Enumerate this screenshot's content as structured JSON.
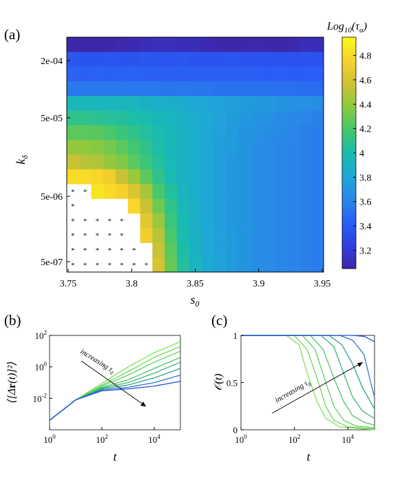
{
  "chart_data": [
    {
      "panel": "(a)",
      "type": "heatmap",
      "xlabel": "s_0",
      "ylabel": "k_δ",
      "colorbar_label": "Log10(τα)",
      "colorbar_ticks": [
        "3.2",
        "3.4",
        "3.6",
        "3.8",
        "4",
        "4.2",
        "4.4",
        "4.6",
        "4.8"
      ],
      "colorbar_range": [
        3.05,
        4.95
      ],
      "xticks": [
        "3.75",
        "3.8",
        "3.85",
        "3.9",
        "3.95"
      ],
      "yticks": [
        "2e-04",
        "5e-05",
        "5e-06",
        "5e-07"
      ],
      "x_values": [
        3.75,
        3.76,
        3.77,
        3.78,
        3.79,
        3.8,
        3.81,
        3.82,
        3.83,
        3.84,
        3.85,
        3.86,
        3.87,
        3.88,
        3.89,
        3.9,
        3.91,
        3.92,
        3.93,
        3.94,
        3.95
      ],
      "y_rows_top_to_bottom": [
        "4e-04",
        "2e-04",
        "1.3e-04",
        "8e-05",
        "5e-05",
        "3e-05",
        "2e-05",
        "1.3e-05",
        "8e-06",
        "5e-06",
        "3e-06",
        "2e-06",
        "1.3e-06",
        "8e-07",
        "5e-07",
        "3e-07"
      ],
      "z_log10_tau": [
        [
          3.05,
          3.05,
          3.05,
          3.05,
          3.07,
          3.08,
          3.1,
          3.12,
          3.12,
          3.1,
          3.1,
          3.08,
          3.06,
          3.05,
          3.06,
          3.07,
          3.06,
          3.05,
          3.07,
          3.1,
          3.1
        ],
        [
          3.38,
          3.36,
          3.36,
          3.37,
          3.36,
          3.36,
          3.38,
          3.37,
          3.37,
          3.38,
          3.36,
          3.35,
          3.36,
          3.37,
          3.36,
          3.35,
          3.36,
          3.35,
          3.35,
          3.36,
          3.35
        ],
        [
          3.45,
          3.44,
          3.45,
          3.44,
          3.45,
          3.45,
          3.44,
          3.44,
          3.44,
          3.43,
          3.44,
          3.44,
          3.43,
          3.43,
          3.44,
          3.43,
          3.42,
          3.43,
          3.42,
          3.42,
          3.43
        ],
        [
          3.55,
          3.55,
          3.55,
          3.55,
          3.54,
          3.55,
          3.54,
          3.54,
          3.53,
          3.54,
          3.53,
          3.53,
          3.52,
          3.52,
          3.52,
          3.52,
          3.51,
          3.51,
          3.51,
          3.5,
          3.5
        ],
        [
          3.95,
          3.95,
          3.94,
          3.94,
          3.93,
          3.93,
          3.9,
          3.88,
          3.86,
          3.85,
          3.82,
          3.8,
          3.78,
          3.76,
          3.74,
          3.72,
          3.72,
          3.7,
          3.68,
          3.68,
          3.66
        ],
        [
          4.1,
          4.1,
          4.08,
          4.06,
          4.05,
          4.02,
          4.0,
          3.95,
          3.92,
          3.88,
          3.85,
          3.82,
          3.78,
          3.75,
          3.72,
          3.7,
          3.68,
          3.66,
          3.64,
          3.62,
          3.6
        ],
        [
          4.25,
          4.25,
          4.24,
          4.2,
          4.15,
          4.1,
          4.05,
          4.0,
          3.95,
          3.9,
          3.85,
          3.8,
          3.77,
          3.74,
          3.7,
          3.68,
          3.66,
          3.64,
          3.62,
          3.6,
          3.58
        ],
        [
          4.4,
          4.38,
          4.36,
          4.32,
          4.25,
          4.18,
          4.1,
          4.02,
          3.95,
          3.9,
          3.85,
          3.8,
          3.76,
          3.73,
          3.7,
          3.67,
          3.65,
          3.63,
          3.61,
          3.6,
          3.58
        ],
        [
          4.55,
          4.5,
          4.48,
          4.4,
          4.35,
          4.25,
          4.15,
          4.05,
          3.96,
          3.9,
          3.85,
          3.8,
          3.76,
          3.72,
          3.7,
          3.67,
          3.65,
          3.63,
          3.61,
          3.6,
          3.58
        ],
        [
          4.8,
          4.8,
          4.78,
          4.72,
          4.55,
          4.42,
          4.25,
          4.1,
          3.98,
          3.9,
          3.85,
          3.8,
          3.76,
          3.72,
          3.7,
          3.67,
          3.65,
          3.63,
          3.61,
          3.6,
          3.58
        ],
        [
          null,
          null,
          4.85,
          4.8,
          4.75,
          4.62,
          4.45,
          4.2,
          4.05,
          3.92,
          3.86,
          3.8,
          3.76,
          3.72,
          3.7,
          3.67,
          3.65,
          3.63,
          3.61,
          3.6,
          3.58
        ],
        [
          null,
          null,
          null,
          null,
          null,
          4.78,
          4.55,
          4.3,
          4.1,
          3.95,
          3.87,
          3.8,
          3.76,
          3.72,
          3.7,
          3.67,
          3.65,
          3.63,
          3.61,
          3.6,
          3.58
        ],
        [
          null,
          null,
          null,
          null,
          null,
          null,
          4.65,
          4.42,
          4.15,
          3.98,
          3.88,
          3.81,
          3.76,
          3.72,
          3.7,
          3.67,
          3.65,
          3.63,
          3.61,
          3.6,
          3.58
        ],
        [
          null,
          null,
          null,
          null,
          null,
          null,
          4.72,
          4.5,
          4.2,
          4.0,
          3.9,
          3.82,
          3.77,
          3.73,
          3.7,
          3.67,
          3.65,
          3.63,
          3.61,
          3.6,
          3.58
        ],
        [
          null,
          null,
          null,
          null,
          null,
          null,
          null,
          4.55,
          4.25,
          4.02,
          3.9,
          3.82,
          3.77,
          3.73,
          3.7,
          3.67,
          3.65,
          3.63,
          3.61,
          3.6,
          3.58
        ],
        [
          null,
          null,
          null,
          null,
          null,
          null,
          null,
          4.6,
          4.28,
          4.05,
          3.92,
          3.83,
          3.78,
          3.73,
          3.7,
          3.67,
          3.65,
          3.63,
          3.61,
          3.6,
          3.58
        ]
      ],
      "unconverged_markers": [
        [
          0,
          10
        ],
        [
          1,
          10
        ],
        [
          0,
          11
        ],
        [
          0,
          12
        ],
        [
          1,
          12
        ],
        [
          2,
          12
        ],
        [
          3,
          12
        ],
        [
          4,
          12
        ],
        [
          0,
          13
        ],
        [
          1,
          13
        ],
        [
          2,
          13
        ],
        [
          3,
          13
        ],
        [
          4,
          13
        ],
        [
          0,
          14
        ],
        [
          0,
          15
        ],
        [
          1,
          14
        ],
        [
          2,
          14
        ],
        [
          3,
          14
        ],
        [
          4,
          14
        ],
        [
          5,
          14
        ],
        [
          1,
          15
        ],
        [
          2,
          15
        ],
        [
          3,
          15
        ],
        [
          4,
          15
        ],
        [
          5,
          15
        ],
        [
          6,
          15
        ]
      ]
    },
    {
      "panel": "(b)",
      "type": "line",
      "xscale": "log",
      "yscale": "log",
      "xlabel": "t",
      "ylabel": "⟨[Δr(t)]²⟩",
      "xlim": [
        1,
        100000
      ],
      "ylim": [
        0.0001,
        100
      ],
      "xticks": [
        "10^0",
        "10^2",
        "10^4"
      ],
      "yticks": [
        "10^2",
        "10^0",
        "10^-2"
      ],
      "annotation": "increasing τ_δ",
      "series": [
        {
          "color": "#7fe05a",
          "x": [
            1,
            10,
            100,
            1000,
            10000,
            100000
          ],
          "y": [
            0.0004,
            0.008,
            0.09,
            1.0,
            8,
            40
          ]
        },
        {
          "color": "#6fd85a",
          "x": [
            1,
            10,
            100,
            1000,
            10000,
            100000
          ],
          "y": [
            0.0004,
            0.008,
            0.07,
            0.5,
            4,
            20
          ]
        },
        {
          "color": "#5fd060",
          "x": [
            1,
            10,
            100,
            1000,
            10000,
            100000
          ],
          "y": [
            0.0004,
            0.008,
            0.06,
            0.3,
            2,
            10
          ]
        },
        {
          "color": "#4fc468",
          "x": [
            1,
            10,
            100,
            1000,
            10000,
            100000
          ],
          "y": [
            0.0004,
            0.008,
            0.05,
            0.15,
            0.8,
            4
          ]
        },
        {
          "color": "#3cb474",
          "x": [
            1,
            10,
            100,
            1000,
            10000,
            100000
          ],
          "y": [
            0.0004,
            0.008,
            0.045,
            0.1,
            0.4,
            2
          ]
        },
        {
          "color": "#2ea08a",
          "x": [
            1,
            10,
            100,
            1000,
            10000,
            100000
          ],
          "y": [
            0.0004,
            0.008,
            0.04,
            0.07,
            0.2,
            0.8
          ]
        },
        {
          "color": "#2d78c8",
          "x": [
            1,
            10,
            100,
            1000,
            10000,
            100000
          ],
          "y": [
            0.0004,
            0.008,
            0.035,
            0.05,
            0.1,
            0.3
          ]
        },
        {
          "color": "#2050e0",
          "x": [
            1,
            10,
            100,
            1000,
            10000,
            100000
          ],
          "y": [
            0.0004,
            0.008,
            0.03,
            0.04,
            0.06,
            0.12
          ]
        }
      ]
    },
    {
      "panel": "(c)",
      "type": "line",
      "xscale": "log",
      "xlabel": "t",
      "ylabel": "O(t)",
      "xlim": [
        1,
        100000
      ],
      "ylim": [
        0,
        1
      ],
      "xticks": [
        "10^0",
        "10^2",
        "10^4"
      ],
      "yticks": [
        "0",
        "0.5",
        "1"
      ],
      "annotation": "increasing τ_δ",
      "series": [
        {
          "color": "#7fe05a",
          "x": [
            1,
            50,
            150,
            300,
            700,
            1500,
            5000,
            100000
          ],
          "y": [
            1,
            1,
            0.9,
            0.6,
            0.3,
            0.12,
            0.03,
            0.0
          ]
        },
        {
          "color": "#6fd85a",
          "x": [
            1,
            100,
            300,
            700,
            1500,
            3000,
            10000,
            100000
          ],
          "y": [
            1,
            1,
            0.85,
            0.55,
            0.25,
            0.1,
            0.03,
            0.01
          ]
        },
        {
          "color": "#5fd060",
          "x": [
            1,
            200,
            600,
            1500,
            3000,
            7000,
            20000,
            100000
          ],
          "y": [
            1,
            1,
            0.85,
            0.5,
            0.25,
            0.1,
            0.04,
            0.02
          ]
        },
        {
          "color": "#4fc468",
          "x": [
            1,
            400,
            1200,
            3000,
            7000,
            15000,
            40000,
            100000
          ],
          "y": [
            1,
            1,
            0.85,
            0.55,
            0.3,
            0.15,
            0.08,
            0.05
          ]
        },
        {
          "color": "#3cb474",
          "x": [
            1,
            1000,
            3000,
            7000,
            15000,
            35000,
            100000
          ],
          "y": [
            1,
            1,
            0.88,
            0.6,
            0.35,
            0.2,
            0.12
          ]
        },
        {
          "color": "#2ea08a",
          "x": [
            1,
            2000,
            6000,
            15000,
            35000,
            70000,
            100000
          ],
          "y": [
            1,
            1,
            0.9,
            0.7,
            0.45,
            0.3,
            0.22
          ]
        },
        {
          "color": "#2d78c8",
          "x": [
            1,
            5000,
            15000,
            40000,
            80000,
            100000
          ],
          "y": [
            1,
            1,
            0.95,
            0.8,
            0.45,
            0.35
          ]
        },
        {
          "color": "#2050e0",
          "x": [
            1,
            15000,
            40000,
            80000,
            100000
          ],
          "y": [
            1,
            1,
            0.99,
            0.95,
            0.93
          ]
        }
      ]
    }
  ]
}
